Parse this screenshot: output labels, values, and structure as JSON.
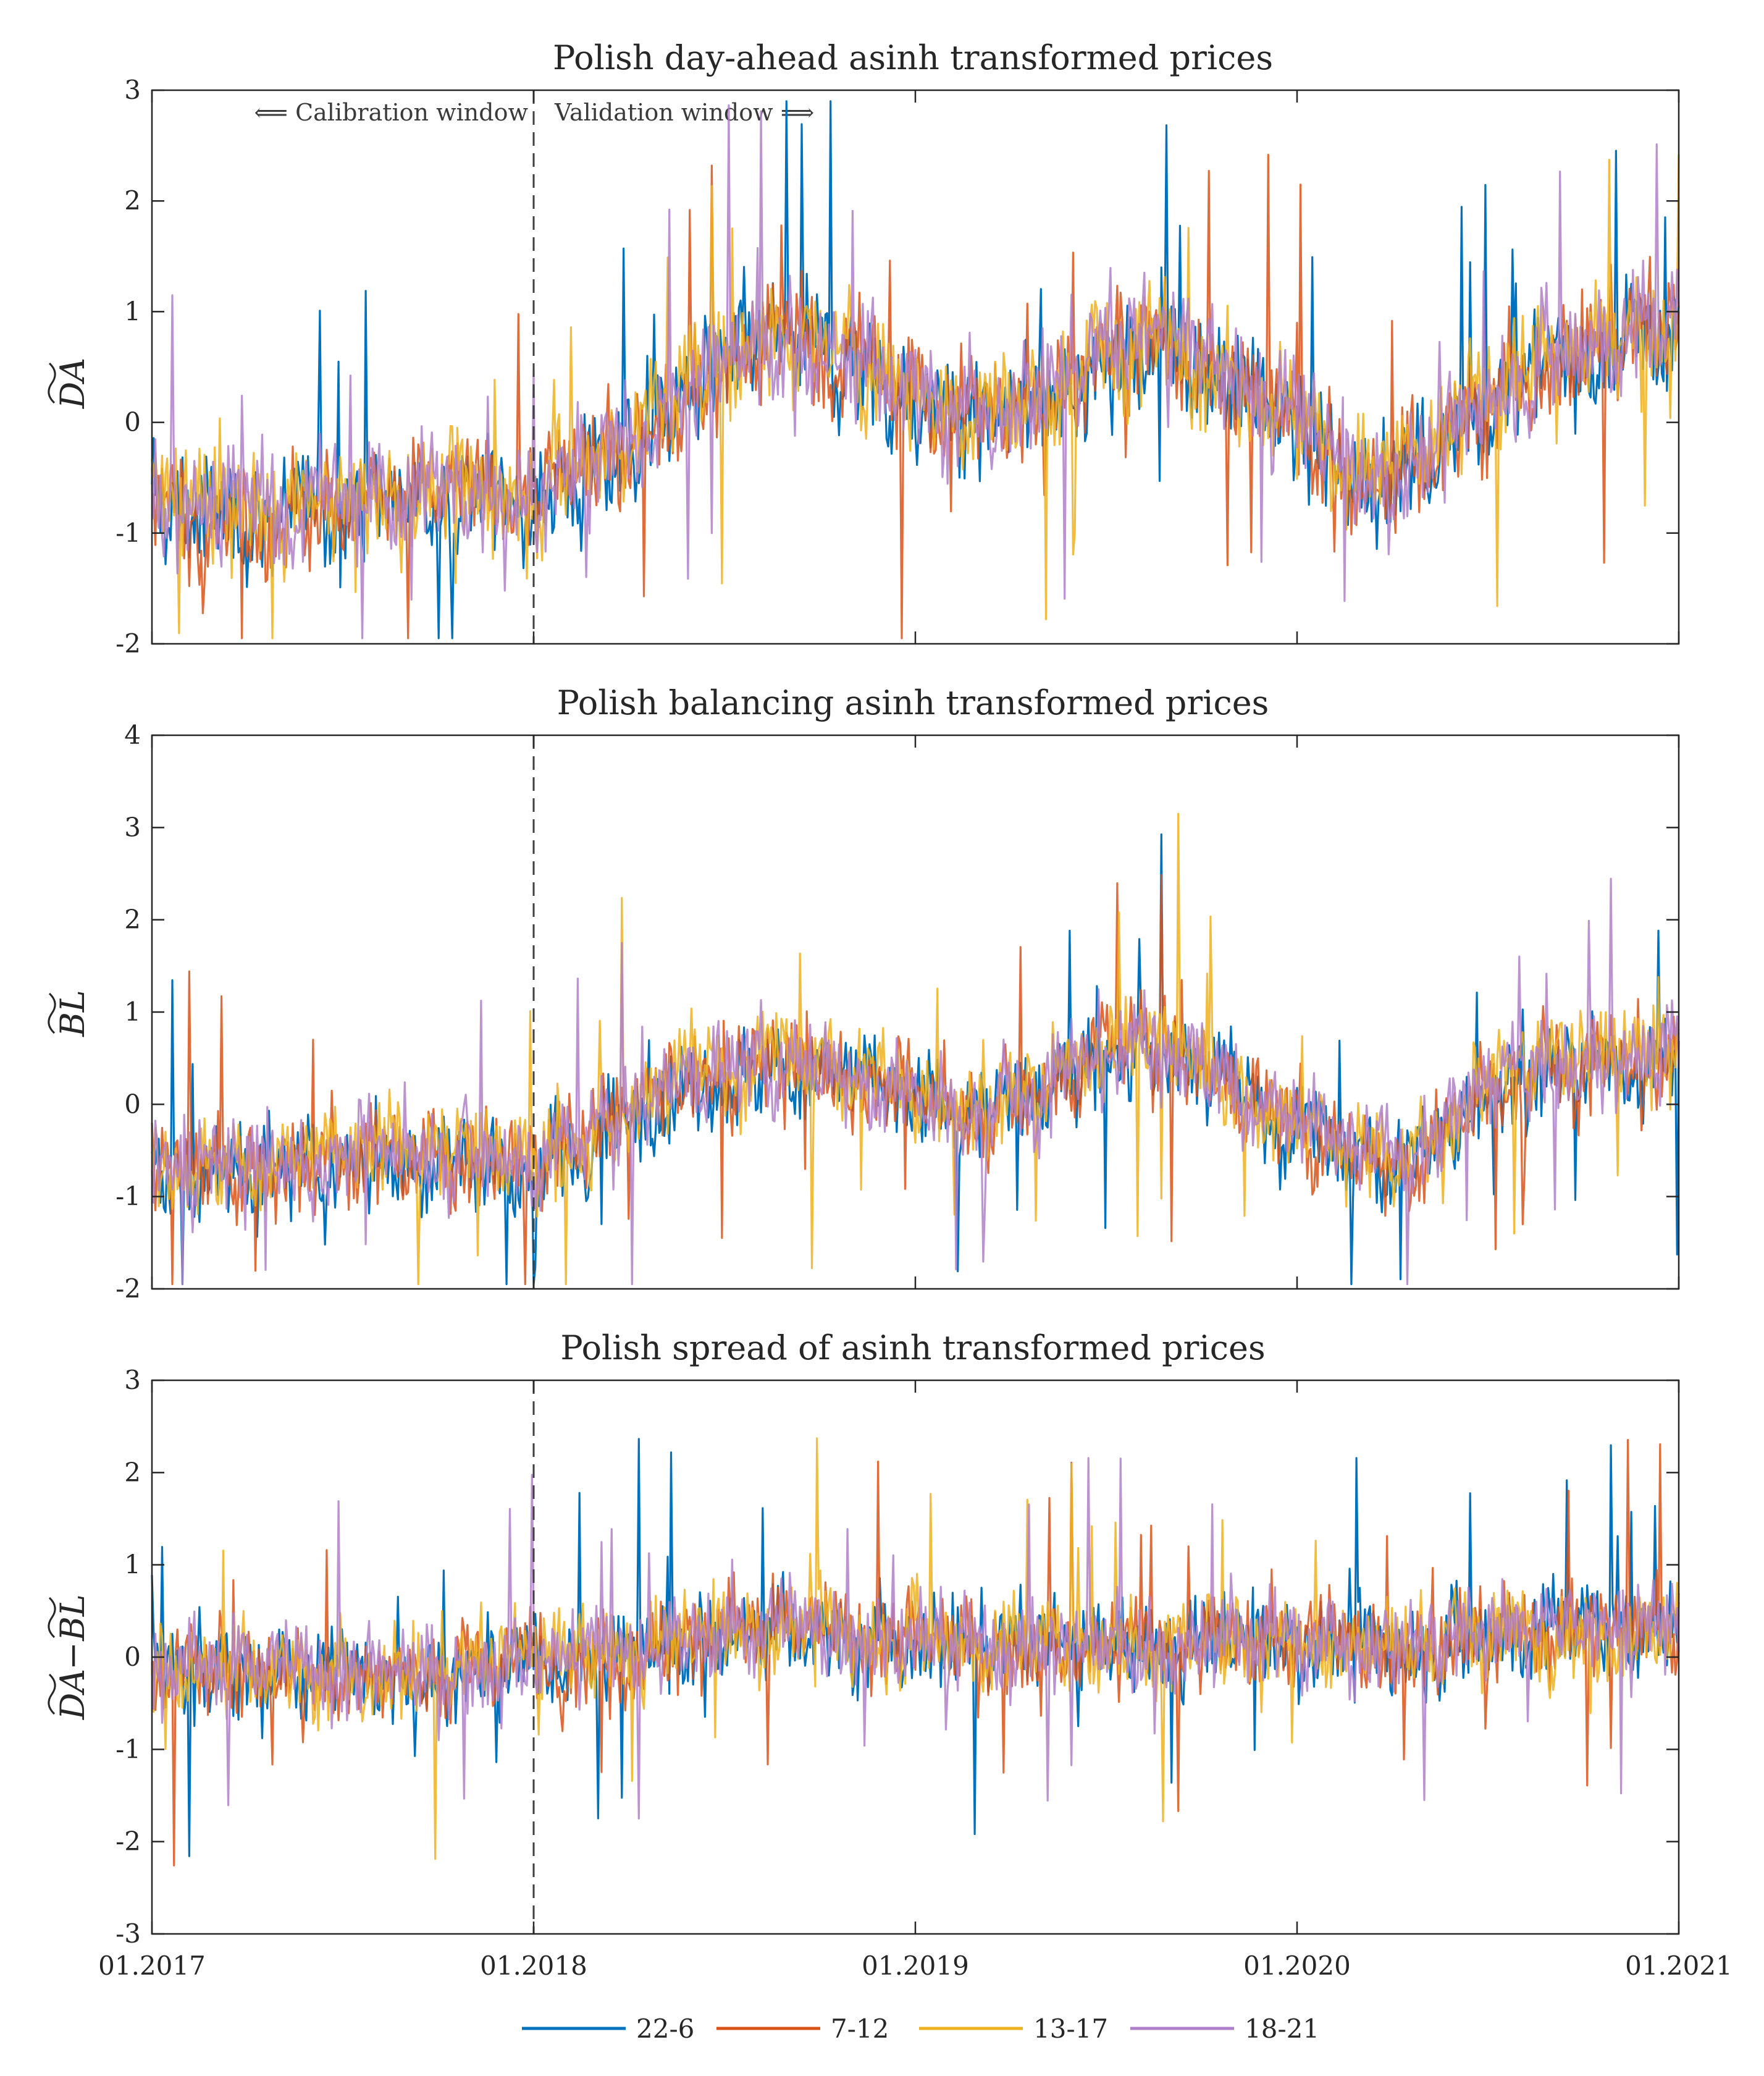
{
  "chart_data": [
    {
      "type": "line",
      "title": "Polish day-ahead asinh transformed prices",
      "ylabel": "DA (tilde)",
      "ylabel_parts": [
        "DA"
      ],
      "ylim": [
        -2,
        3
      ],
      "yticks": [
        "-2",
        "-1",
        "0",
        "1",
        "2",
        "3"
      ],
      "xlim": [
        "01.2017",
        "01.2021"
      ],
      "split": "01.2018",
      "annotation_left": "⟸ Calibration window",
      "annotation_right": "Validation window ⟹",
      "series_trend": {
        "x": [
          "01.2017",
          "03.2017",
          "05.2017",
          "07.2017",
          "09.2017",
          "11.2017",
          "01.2018",
          "03.2018",
          "05.2018",
          "07.2018",
          "09.2018",
          "11.2018",
          "01.2019",
          "03.2019",
          "05.2019",
          "07.2019",
          "09.2019",
          "11.2019",
          "01.2020",
          "03.2020",
          "05.2020",
          "07.2020",
          "09.2020",
          "11.2020",
          "01.2021"
        ],
        "level": [
          -0.8,
          -0.85,
          -0.85,
          -0.8,
          -0.7,
          -0.7,
          -0.7,
          -0.4,
          0.0,
          0.5,
          0.7,
          0.5,
          0.2,
          0.0,
          0.2,
          0.6,
          0.7,
          0.3,
          0.0,
          -0.6,
          -0.4,
          0.2,
          0.5,
          0.7,
          0.8
        ]
      }
    },
    {
      "type": "line",
      "title": "Polish balancing asinh transformed prices",
      "ylabel": "BL (tilde)",
      "ylabel_parts": [
        "BL"
      ],
      "ylim": [
        -2,
        4
      ],
      "yticks": [
        "-2",
        "-1",
        "0",
        "1",
        "2",
        "3",
        "4"
      ],
      "xlim": [
        "01.2017",
        "01.2021"
      ],
      "split": "01.2018",
      "series_trend": {
        "x": [
          "01.2017",
          "03.2017",
          "05.2017",
          "07.2017",
          "09.2017",
          "11.2017",
          "01.2018",
          "03.2018",
          "05.2018",
          "07.2018",
          "09.2018",
          "11.2018",
          "01.2019",
          "03.2019",
          "05.2019",
          "07.2019",
          "09.2019",
          "11.2019",
          "01.2020",
          "03.2020",
          "05.2020",
          "07.2020",
          "09.2020",
          "11.2020",
          "01.2021"
        ],
        "level": [
          -0.7,
          -0.75,
          -0.7,
          -0.65,
          -0.55,
          -0.6,
          -0.7,
          -0.4,
          0.1,
          0.3,
          0.4,
          0.3,
          0.0,
          -0.1,
          0.1,
          0.6,
          0.6,
          0.1,
          -0.3,
          -0.6,
          -0.6,
          0.2,
          0.4,
          0.4,
          0.5
        ]
      }
    },
    {
      "type": "line",
      "title": "Polish spread of asinh transformed prices",
      "ylabel": "DA (tilde) − BL (tilde)",
      "ylabel_parts": [
        "DA",
        "−",
        "BL"
      ],
      "ylim": [
        -3,
        3
      ],
      "yticks": [
        "-3",
        "-2",
        "-1",
        "0",
        "1",
        "2",
        "3"
      ],
      "xlim": [
        "01.2017",
        "01.2021"
      ],
      "split": "01.2018",
      "series_trend": {
        "x": [
          "01.2017",
          "03.2017",
          "05.2017",
          "07.2017",
          "09.2017",
          "11.2017",
          "01.2018",
          "03.2018",
          "05.2018",
          "07.2018",
          "09.2018",
          "11.2018",
          "01.2019",
          "03.2019",
          "05.2019",
          "07.2019",
          "09.2019",
          "11.2019",
          "01.2020",
          "03.2020",
          "05.2020",
          "07.2020",
          "09.2020",
          "11.2020",
          "01.2021"
        ],
        "level": [
          -0.1,
          -0.15,
          -0.15,
          -0.2,
          -0.2,
          -0.15,
          0.0,
          0.0,
          0.1,
          0.3,
          0.3,
          0.2,
          0.2,
          0.1,
          0.1,
          0.1,
          0.1,
          0.2,
          0.2,
          0.1,
          0.1,
          0.2,
          0.3,
          0.3,
          0.3
        ]
      }
    }
  ],
  "x_ticks": [
    "01.2017",
    "01.2018",
    "01.2019",
    "01.2020",
    "01.2021"
  ],
  "legend": [
    {
      "name": "22-6",
      "color": "#0072BD"
    },
    {
      "name": "7-12",
      "color": "#D95319"
    },
    {
      "name": "13-17",
      "color": "#EDB120"
    },
    {
      "name": "18-21",
      "color": "#B07FC9"
    }
  ],
  "colors": {
    "axis": "#262626",
    "split_line": "#404040"
  }
}
